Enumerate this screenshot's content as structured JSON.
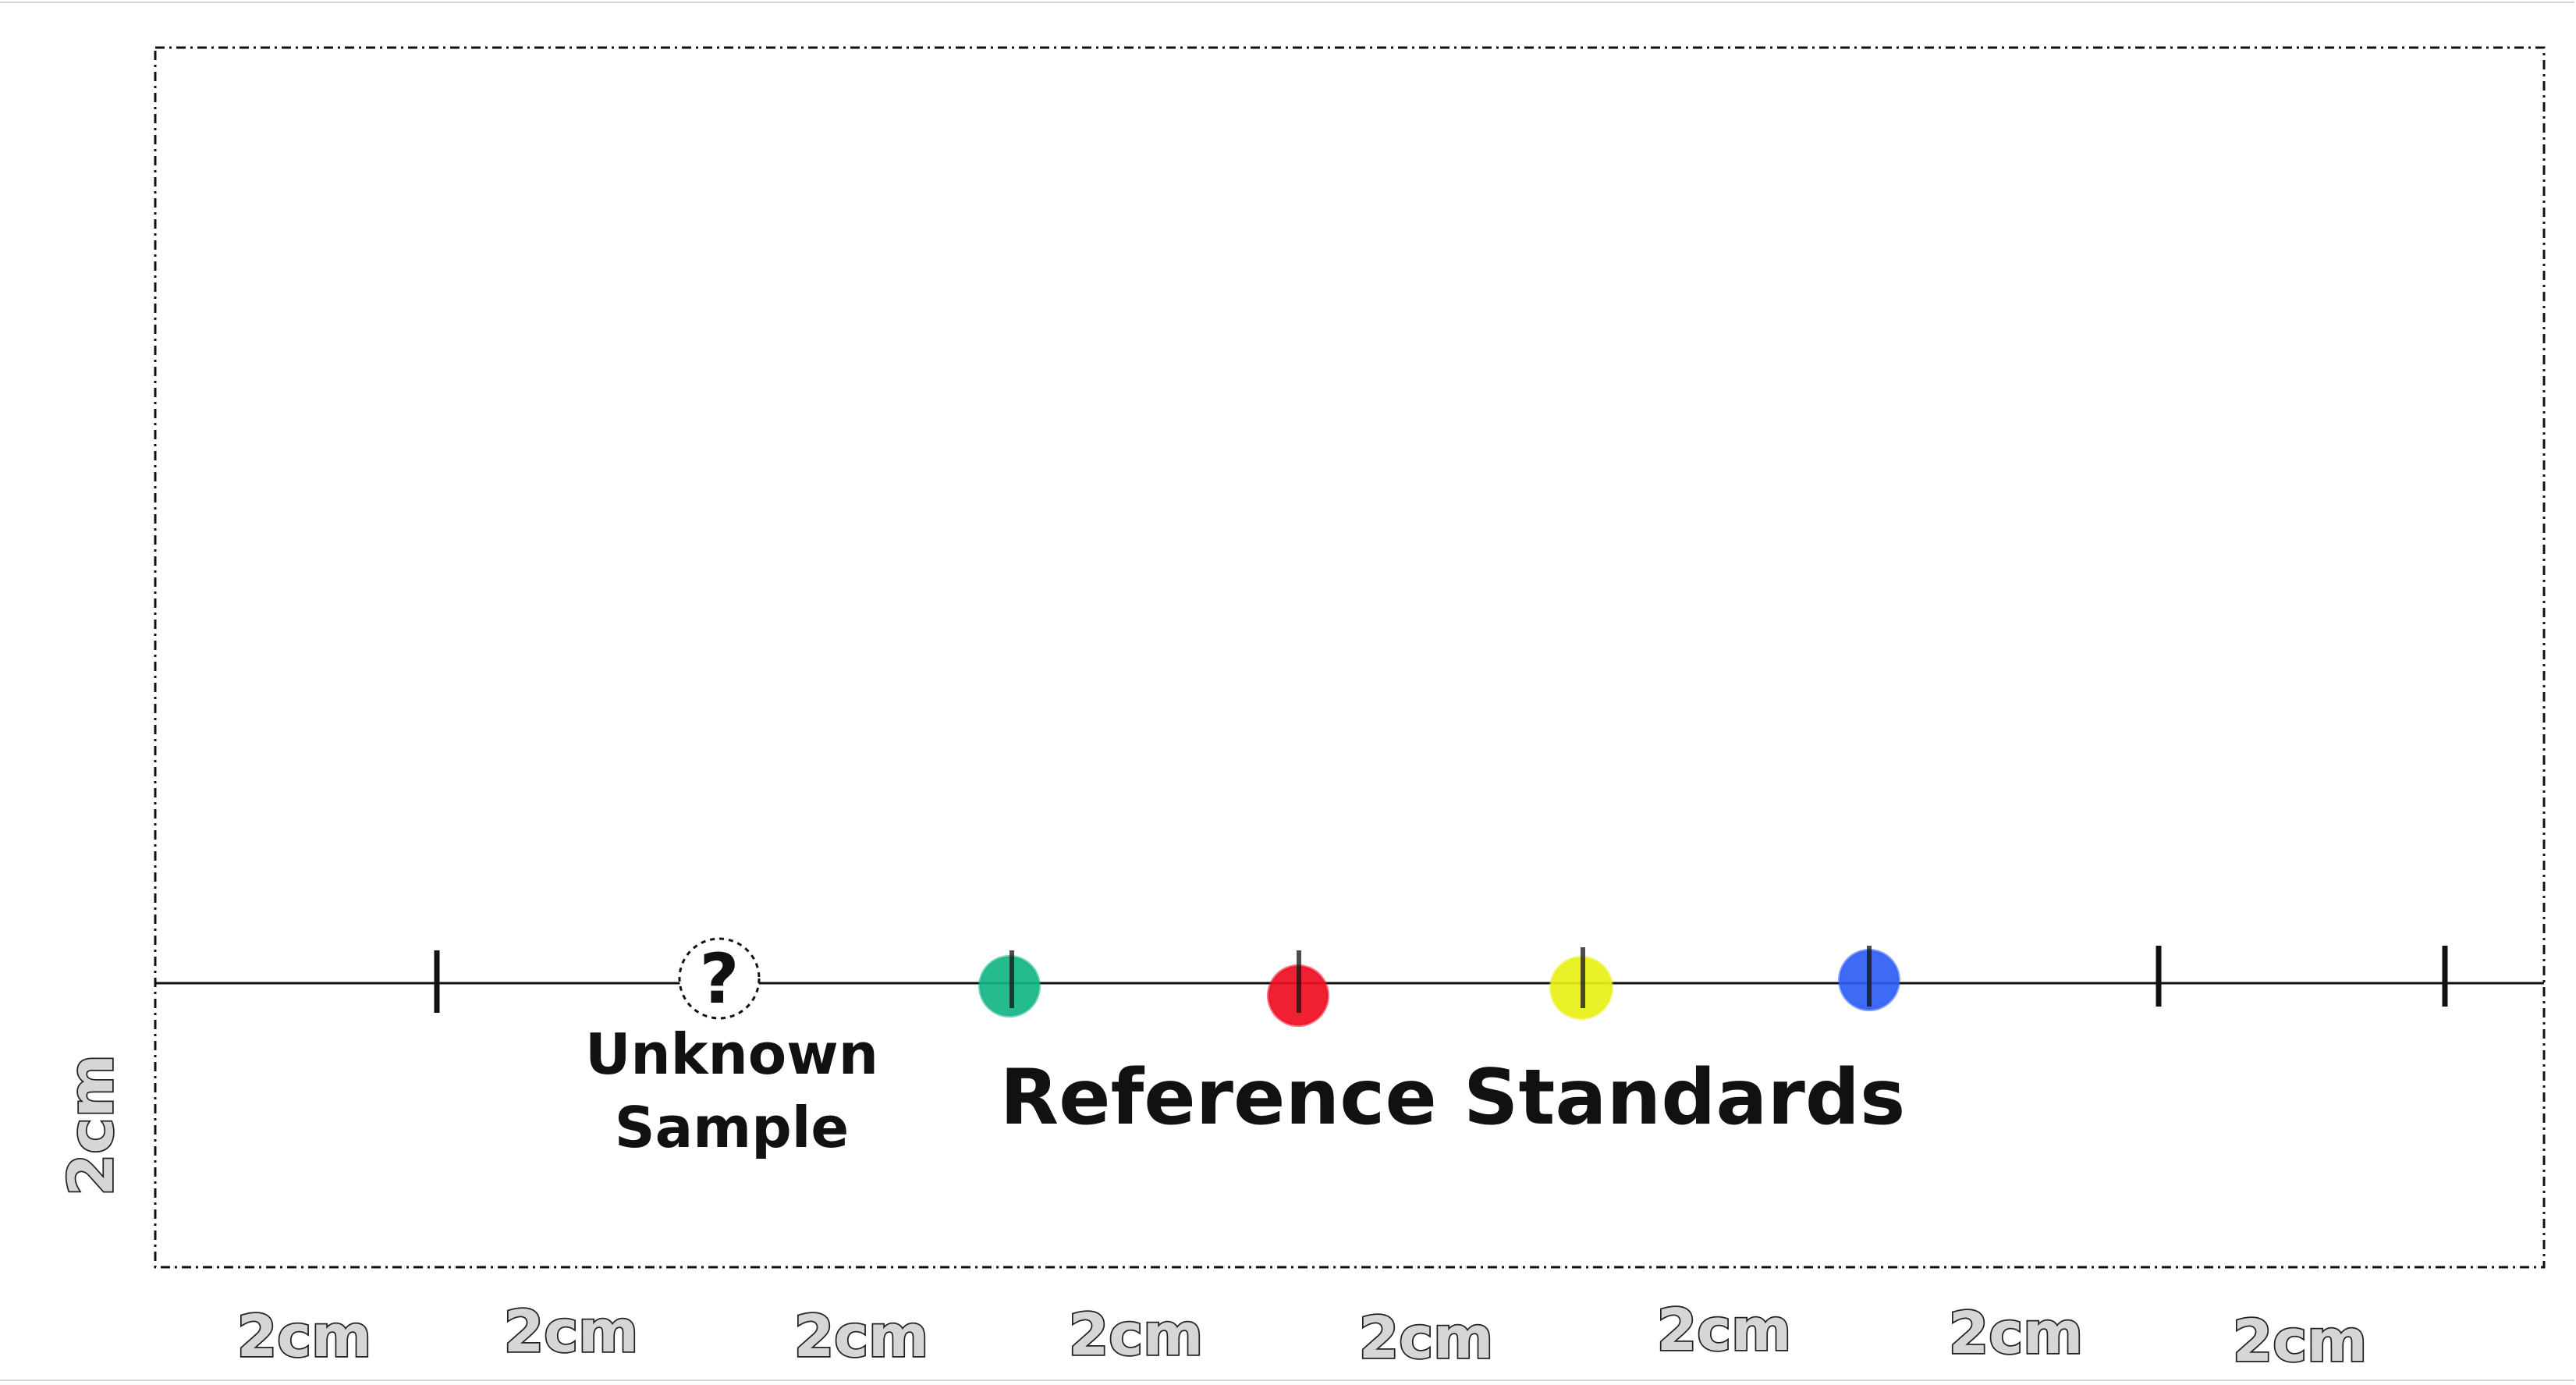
{
  "unknown_sample": {
    "symbol": "?",
    "label_line1": "Unknown",
    "label_line2": "Sample"
  },
  "reference_standards": {
    "label": "Reference Standards",
    "spots": [
      {
        "name": "green-standard-spot",
        "color": "#13b585"
      },
      {
        "name": "red-standard-spot",
        "color": "#ee0e22"
      },
      {
        "name": "yellow-standard-spot",
        "color": "#e8f016"
      },
      {
        "name": "blue-standard-spot",
        "color": "#2e5ef5"
      }
    ]
  },
  "spacing_labels": {
    "horizontal": [
      "2cm",
      "2cm",
      "2cm",
      "2cm",
      "2cm",
      "2cm",
      "2cm",
      "2cm"
    ],
    "vertical": "2cm"
  },
  "colors": {
    "frame": "#111111",
    "baseline": "#111111",
    "tick": "#111111",
    "label_fill": "#d6d6d6",
    "label_stroke": "#222222"
  }
}
